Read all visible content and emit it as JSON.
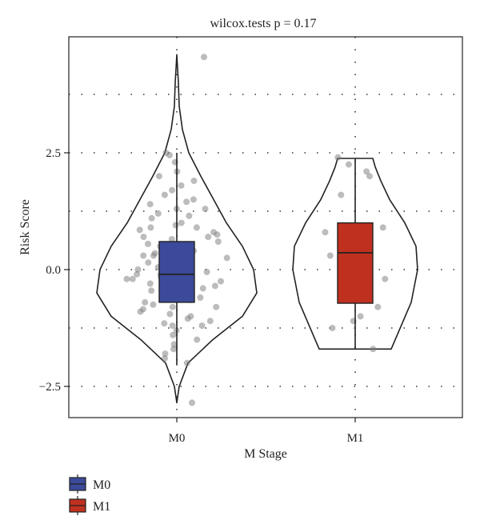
{
  "chart_data": {
    "type": "violin",
    "title": "wilcox.tests p = 0.17",
    "xlabel": "M Stage",
    "ylabel": "Risk Score",
    "categories": [
      "M0",
      "M1"
    ],
    "ylim": [
      -3.2,
      5.0
    ],
    "yticks": [
      2.5,
      0.0,
      -2.5
    ],
    "ytick_labels": [
      "2.5",
      "0.0",
      "−2.5"
    ],
    "grid": "dotted",
    "legend_position": "bottom-left",
    "series": [
      {
        "name": "M0",
        "color": "#3b4a9a",
        "box": {
          "q1": -0.7,
          "median": -0.1,
          "q3": 0.6,
          "whisker_low": -2.05,
          "whisker_high": 2.5
        },
        "violin_range": [
          -2.85,
          4.6
        ],
        "points": [
          4.55,
          -2.85,
          2.5,
          2.45,
          2.3,
          2.1,
          2.0,
          1.9,
          1.8,
          1.7,
          1.6,
          1.5,
          1.45,
          1.4,
          1.3,
          1.2,
          1.15,
          1.1,
          1.0,
          0.95,
          0.9,
          0.85,
          0.8,
          0.75,
          0.7,
          0.65,
          0.6,
          0.55,
          0.5,
          0.45,
          0.4,
          0.35,
          0.3,
          0.25,
          0.2,
          0.15,
          0.1,
          0.05,
          0.0,
          -0.05,
          -0.1,
          -0.15,
          -0.2,
          -0.25,
          -0.3,
          -0.35,
          -0.4,
          -0.45,
          -0.5,
          -0.55,
          -0.6,
          -0.65,
          -0.7,
          -0.75,
          -0.8,
          -0.85,
          -0.9,
          -0.95,
          -1.0,
          -1.05,
          -1.1,
          -1.15,
          -1.2,
          -1.3,
          -1.4,
          -1.5,
          -1.6,
          -1.7,
          -1.8,
          -1.9,
          -2.0,
          -0.1,
          0.3,
          -0.4,
          0.7,
          -0.8,
          1.3,
          -1.2,
          0.9,
          -0.6,
          0.2,
          -0.2,
          0.5,
          -0.5
        ]
      },
      {
        "name": "M1",
        "color": "#c0301f",
        "box": {
          "q1": -0.72,
          "median": 0.36,
          "q3": 1.0,
          "whisker_low": -1.7,
          "whisker_high": 2.38
        },
        "violin_range": [
          -1.7,
          2.38
        ],
        "points": [
          2.4,
          2.25,
          2.1,
          2.0,
          1.6,
          0.9,
          0.8,
          0.6,
          0.5,
          0.45,
          0.3,
          -0.2,
          -0.5,
          -0.8,
          -1.0,
          -1.1,
          -1.25,
          -1.7
        ]
      }
    ],
    "legend": [
      {
        "label": "M0",
        "color": "#3b4a9a"
      },
      {
        "label": "M1",
        "color": "#c0301f"
      }
    ]
  }
}
